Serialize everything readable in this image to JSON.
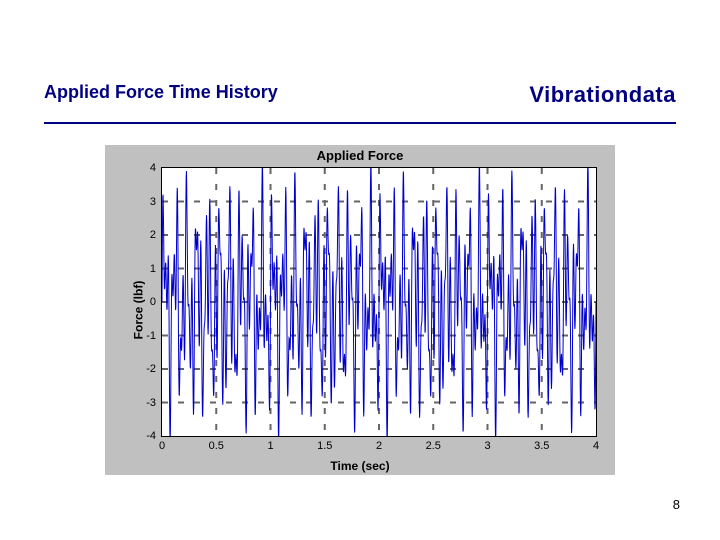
{
  "header": {
    "left_title": "Applied Force Time History",
    "right_brand": "Vibrationdata"
  },
  "page_number": "8",
  "chart": {
    "type": "line",
    "title": "Applied Force",
    "xlabel": "Time (sec)",
    "ylabel": "Force (lbf)",
    "xlim": [
      0,
      4
    ],
    "ylim": [
      -4,
      4
    ],
    "xtick_step": 0.5,
    "ytick_step": 1,
    "xticks": [
      "0",
      "0.5",
      "1",
      "1.5",
      "2",
      "2.5",
      "3",
      "3.5",
      "4"
    ],
    "yticks": [
      "4",
      "3",
      "2",
      "1",
      "0",
      "-1",
      "-2",
      "-3",
      "-4"
    ],
    "background_color": "#c0c0c0",
    "plot_background": "#ffffff",
    "axis_color": "#000000",
    "grid_color": "#666666",
    "grid_dash": "3,4",
    "line_color": "#0000cc",
    "line_width": 1,
    "title_fontsize": 13,
    "label_fontsize": 12,
    "tick_fontsize": 11,
    "signal": {
      "description": "sum of sinusoids, dense oscillation",
      "freqs_hz": [
        10,
        23,
        37
      ],
      "amps": [
        1.6,
        1.4,
        1.2
      ],
      "n_samples": 1600,
      "clip": 4.2
    }
  }
}
